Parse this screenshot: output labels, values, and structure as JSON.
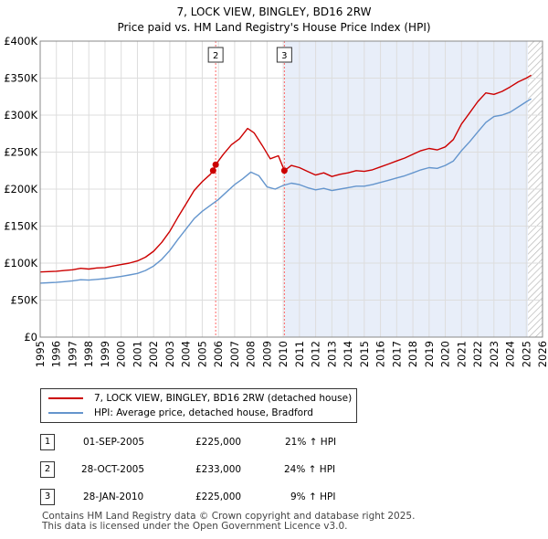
{
  "header": {
    "title_line1": "7, LOCK VIEW, BINGLEY, BD16 2RW",
    "title_line2": "Price paid vs. HM Land Registry's House Price Index (HPI)"
  },
  "colors": {
    "property": "#cc0000",
    "hpi": "#6495cd",
    "shade": "#e8eef9",
    "grid": "#dddddd",
    "marker_line": "#ff6666"
  },
  "chart_data": {
    "type": "line",
    "title": "Price paid vs. HM Land Registry's House Price Index (HPI)",
    "xlabel": "",
    "ylabel": "",
    "xlim": [
      1995,
      2026
    ],
    "ylim": [
      0,
      400000
    ],
    "y_ticks": [
      0,
      50000,
      100000,
      150000,
      200000,
      250000,
      300000,
      350000,
      400000
    ],
    "y_tick_labels": [
      "£0",
      "£50K",
      "£100K",
      "£150K",
      "£200K",
      "£250K",
      "£300K",
      "£350K",
      "£400K"
    ],
    "x_ticks": [
      1995,
      1996,
      1997,
      1998,
      1999,
      2000,
      2001,
      2002,
      2003,
      2004,
      2005,
      2006,
      2007,
      2008,
      2009,
      2010,
      2011,
      2012,
      2013,
      2014,
      2015,
      2016,
      2017,
      2018,
      2019,
      2020,
      2021,
      2022,
      2023,
      2024,
      2025,
      2026
    ],
    "shaded_from": 2010.07,
    "hatched_from": 2025.1,
    "series": [
      {
        "name": "7, LOCK VIEW, BINGLEY, BD16 2RW (detached house)",
        "color": "#cc0000",
        "x": [
          1995,
          1995.5,
          1996,
          1996.5,
          1997,
          1997.5,
          1998,
          1998.5,
          1999,
          1999.5,
          2000,
          2000.5,
          2001,
          2001.5,
          2002,
          2002.5,
          2003,
          2003.5,
          2004,
          2004.5,
          2005,
          2005.5,
          2005.67,
          2005.83,
          2006.3,
          2006.8,
          2007.3,
          2007.8,
          2008.2,
          2008.7,
          2009.2,
          2009.7,
          2010.07,
          2010.5,
          2011,
          2011.5,
          2012,
          2012.5,
          2013,
          2013.5,
          2014,
          2014.5,
          2015,
          2015.5,
          2016,
          2016.5,
          2017,
          2017.5,
          2018,
          2018.5,
          2019,
          2019.5,
          2020,
          2020.5,
          2021,
          2021.5,
          2022,
          2022.5,
          2023,
          2023.5,
          2024,
          2024.5,
          2025,
          2025.3
        ],
        "values": [
          88000,
          88500,
          89000,
          90000,
          91000,
          93000,
          92000,
          93500,
          94000,
          96000,
          98000,
          100000,
          103000,
          108000,
          116000,
          128000,
          143000,
          162000,
          180000,
          198000,
          210000,
          220000,
          225000,
          233000,
          247000,
          260000,
          268000,
          282000,
          276000,
          259000,
          241000,
          245000,
          225000,
          232000,
          229000,
          224000,
          219000,
          222000,
          217000,
          220000,
          222000,
          225000,
          224000,
          226000,
          230000,
          234000,
          238000,
          242000,
          247000,
          252000,
          255000,
          253000,
          257000,
          267000,
          288000,
          303000,
          318000,
          330000,
          328000,
          332000,
          338000,
          345000,
          350000,
          354000
        ]
      },
      {
        "name": "HPI: Average price, detached house, Bradford",
        "color": "#6495cd",
        "x": [
          1995,
          1995.5,
          1996,
          1996.5,
          1997,
          1997.5,
          1998,
          1998.5,
          1999,
          1999.5,
          2000,
          2000.5,
          2001,
          2001.5,
          2002,
          2002.5,
          2003,
          2003.5,
          2004,
          2004.5,
          2005,
          2005.5,
          2006,
          2006.5,
          2007,
          2007.5,
          2008,
          2008.5,
          2009,
          2009.5,
          2010,
          2010.5,
          2011,
          2011.5,
          2012,
          2012.5,
          2013,
          2013.5,
          2014,
          2014.5,
          2015,
          2015.5,
          2016,
          2016.5,
          2017,
          2017.5,
          2018,
          2018.5,
          2019,
          2019.5,
          2020,
          2020.5,
          2021,
          2021.5,
          2022,
          2022.5,
          2023,
          2023.5,
          2024,
          2024.5,
          2025,
          2025.3
        ],
        "values": [
          73000,
          73500,
          74000,
          75000,
          76000,
          77500,
          77000,
          78000,
          79000,
          80500,
          82000,
          84000,
          86000,
          90000,
          96000,
          105000,
          117000,
          132000,
          146000,
          160000,
          170000,
          178000,
          186000,
          196000,
          206000,
          214000,
          223000,
          218000,
          203000,
          200000,
          205000,
          208000,
          206000,
          202000,
          199000,
          201000,
          198000,
          200000,
          202000,
          204000,
          204000,
          206000,
          209000,
          212000,
          215000,
          218000,
          222000,
          226000,
          229000,
          228000,
          232000,
          238000,
          252000,
          264000,
          277000,
          290000,
          298000,
          300000,
          304000,
          311000,
          318000,
          322000
        ]
      }
    ],
    "sale_markers": [
      {
        "label": "2",
        "x": 2005.83,
        "value": 233000,
        "show_box": true
      },
      {
        "label": "3",
        "x": 2010.07,
        "value": 225000,
        "show_box": true
      },
      {
        "label": "1",
        "x": 2005.67,
        "value": 225000,
        "show_box": false
      }
    ]
  },
  "legend": {
    "property_label": "7, LOCK VIEW, BINGLEY, BD16 2RW (detached house)",
    "hpi_label": "HPI: Average price, detached house, Bradford"
  },
  "sales": [
    {
      "num": "1",
      "date": "01-SEP-2005",
      "price": "£225,000",
      "hpi": "21% ↑ HPI"
    },
    {
      "num": "2",
      "date": "28-OCT-2005",
      "price": "£233,000",
      "hpi": "24% ↑ HPI"
    },
    {
      "num": "3",
      "date": "28-JAN-2010",
      "price": "£225,000",
      "hpi": "9% ↑ HPI"
    }
  ],
  "footer": {
    "line1": "Contains HM Land Registry data © Crown copyright and database right 2025.",
    "line2": "This data is licensed under the Open Government Licence v3.0."
  }
}
